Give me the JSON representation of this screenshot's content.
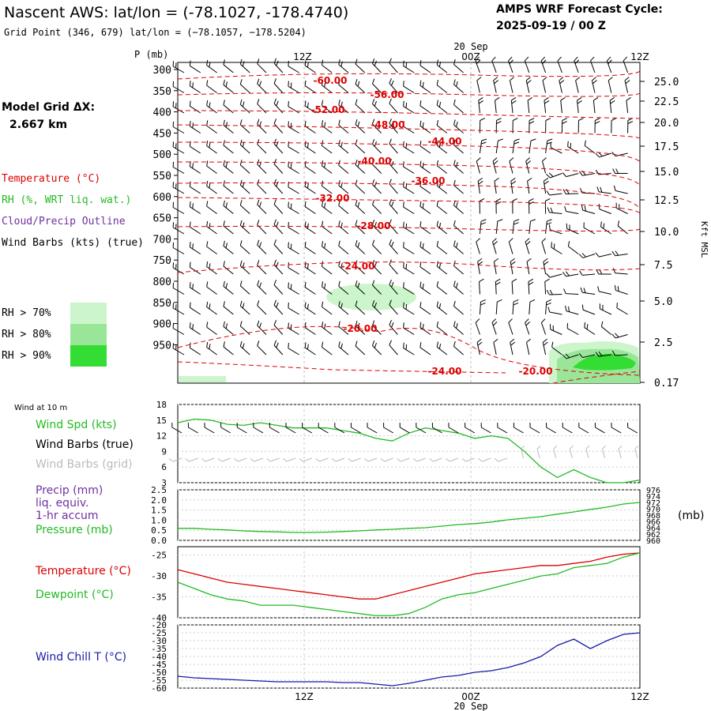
{
  "header": {
    "title": "Nascent AWS:  lat/lon = (-78.1027, -178.4740)",
    "subtitle": "Grid Point (346, 679) lat/lon = (−78.1057, −178.5204)",
    "cycle_label": "AMPS WRF Forecast Cycle:",
    "cycle_value": "2025-09-19 / 00  Z"
  },
  "colors": {
    "temperature": "#dd0000",
    "rh_green": "#22bb22",
    "cloud": "#7030a0",
    "dewpoint": "#22bb22",
    "windchill": "#1a1aa8",
    "rh70": "#ccf5cc",
    "rh80": "#99e699",
    "rh90": "#33dd33",
    "grid": "#999999",
    "barbs_grid": "#bbbbbb"
  },
  "time_axis": {
    "top_labels": [
      "12Z",
      "00Z",
      "12Z"
    ],
    "date_label": "20 Sep",
    "bottom_labels": [
      "12Z",
      "00Z",
      "12Z"
    ]
  },
  "sidebar": {
    "model_grid_label": "Model Grid ΔX:",
    "model_grid_value": "2.667 km",
    "legend_temperature": "Temperature (°C)",
    "legend_rh": "RH (%, WRT liq. wat.)",
    "legend_cloud": "Cloud/Precip Outline",
    "legend_wind": "Wind Barbs (kts) (true)",
    "rh_keys": [
      "RH > 70%",
      "RH > 80%",
      "RH > 90%"
    ],
    "wind_10m_label": "Wind at 10 m",
    "wind_spd_label": "Wind Spd (kts)",
    "wind_barbs_true_label": "Wind Barbs (true)",
    "wind_barbs_grid_label": "Wind Barbs (grid)",
    "precip_label_1": "Precip (mm)",
    "precip_label_2": "liq. equiv.",
    "precip_label_3": "1-hr accum",
    "pressure_label": "Pressure (mb)",
    "temp_label": "Temperature (°C)",
    "dewpoint_label": "Dewpoint (°C)",
    "windchill_label": "Wind Chill T (°C)"
  },
  "chart_data": [
    {
      "type": "heatmap",
      "panel": "time-height cross section",
      "ylabel_left": "P (mb)",
      "ylabel_right": "Kft MSL",
      "pressure_ticks": [
        "300",
        "350",
        "400",
        "450",
        "500",
        "550",
        "600",
        "650",
        "700",
        "750",
        "800",
        "850",
        "900",
        "950"
      ],
      "height_ticks": [
        "25.0",
        "22.5",
        "20.0",
        "17.5",
        "15.0",
        "12.5",
        "10.0",
        "7.5",
        "5.0",
        "2.5",
        "0.17"
      ],
      "temperature_contours": [
        {
          "label": "-60.00"
        },
        {
          "label": "-56.00"
        },
        {
          "label": "-52.00"
        },
        {
          "label": "-48.00"
        },
        {
          "label": "-44.00"
        },
        {
          "label": "-40.00"
        },
        {
          "label": "-36.00"
        },
        {
          "label": "-32.00"
        },
        {
          "label": "-28.00"
        },
        {
          "label": "-24.00"
        },
        {
          "label": "-20.00"
        },
        {
          "label": "-24.00"
        },
        {
          "label": "-20.00"
        }
      ]
    },
    {
      "type": "line",
      "panel": "wind at 10 m",
      "ylim": [
        3,
        18
      ],
      "yticks": [
        "18",
        "15",
        "12",
        "9",
        "6",
        "3"
      ],
      "series": [
        {
          "name": "Wind Spd (kts)",
          "values": [
            14.5,
            15.2,
            15.0,
            14.2,
            14.0,
            14.5,
            14.0,
            13.5,
            13.5,
            13.5,
            13.0,
            12.5,
            11.5,
            11.0,
            12.5,
            13.5,
            13.0,
            12.5,
            11.5,
            12.0,
            11.5,
            9.0,
            6.0,
            4.0,
            5.5,
            4.0,
            3.0,
            3.0,
            3.5
          ]
        }
      ]
    },
    {
      "type": "line",
      "panel": "precip / pressure",
      "ylim": [
        0,
        2.5
      ],
      "yticks": [
        "2.5",
        "2.0",
        "1.5",
        "1.0",
        "0.5",
        "0.0"
      ],
      "y2ticks": [
        "976",
        "974",
        "972",
        "970",
        "968",
        "966",
        "964",
        "962",
        "960"
      ],
      "y2label": "(mb)",
      "series": [
        {
          "name": "Pressure (mb)",
          "values": [
            963.8,
            963.8,
            963.5,
            963.3,
            963.0,
            962.8,
            962.7,
            962.5,
            962.5,
            962.6,
            962.8,
            963.0,
            963.3,
            963.5,
            963.8,
            964.0,
            964.5,
            965.0,
            965.3,
            965.8,
            966.5,
            967.0,
            967.5,
            968.3,
            969.0,
            969.8,
            970.5,
            971.5,
            972.0
          ]
        }
      ]
    },
    {
      "type": "line",
      "panel": "temperature / dewpoint",
      "ylim": [
        -40,
        -23
      ],
      "yticks": [
        "-25",
        "-30",
        "-35",
        "-40"
      ],
      "series": [
        {
          "name": "Temperature (°C)",
          "values": [
            -28.5,
            -29.5,
            -30.5,
            -31.5,
            -32,
            -32.5,
            -33,
            -33.5,
            -34,
            -34.5,
            -35,
            -35.5,
            -35.5,
            -34.5,
            -33.5,
            -32.5,
            -31.5,
            -30.5,
            -29.5,
            -29,
            -28.5,
            -28,
            -27.5,
            -27.5,
            -27,
            -26.5,
            -25.5,
            -24.8,
            -24.5
          ]
        },
        {
          "name": "Dewpoint (°C)",
          "values": [
            -31.5,
            -33,
            -34.5,
            -35.5,
            -36,
            -37,
            -37,
            -37,
            -37.5,
            -38,
            -38.5,
            -39,
            -39.5,
            -39.5,
            -39,
            -37.5,
            -35.5,
            -34.5,
            -34,
            -33,
            -32,
            -31,
            -30,
            -29.5,
            -28,
            -27.5,
            -27,
            -25.5,
            -24.5
          ]
        }
      ]
    },
    {
      "type": "line",
      "panel": "wind chill",
      "ylim": [
        -60,
        -20
      ],
      "yticks": [
        "-20",
        "-25",
        "-30",
        "-35",
        "-40",
        "-45",
        "-50",
        "-55",
        "-60"
      ],
      "series": [
        {
          "name": "Wind Chill T (°C)",
          "values": [
            -52.5,
            -53.5,
            -54,
            -54.5,
            -55,
            -55.5,
            -56,
            -56,
            -56,
            -56,
            -56.5,
            -56.5,
            -57.5,
            -58.5,
            -57,
            -55,
            -53,
            -52,
            -50,
            -49,
            -47,
            -44,
            -40,
            -33,
            -29,
            -35,
            -30,
            -26,
            -25
          ]
        }
      ]
    }
  ]
}
